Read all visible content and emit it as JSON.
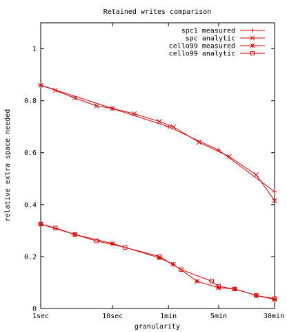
{
  "chart_data": {
    "type": "line",
    "title": "Retained writes comparison",
    "xlabel": "granularity",
    "ylabel": "relative extra space needed",
    "x_scale": "log",
    "x_unit": "seconds",
    "xlim": [
      1,
      1800
    ],
    "ylim": [
      0,
      1.1
    ],
    "x_ticks": [
      {
        "value": 1,
        "label": "1sec"
      },
      {
        "value": 10,
        "label": "10sec"
      },
      {
        "value": 60,
        "label": "1min"
      },
      {
        "value": 300,
        "label": "5min"
      },
      {
        "value": 1800,
        "label": "30min"
      }
    ],
    "y_ticks": [
      {
        "value": 0,
        "label": "0"
      },
      {
        "value": 0.2,
        "label": "0.2"
      },
      {
        "value": 0.4,
        "label": "0.4"
      },
      {
        "value": 0.6,
        "label": "0.6"
      },
      {
        "value": 0.8,
        "label": "0.8"
      },
      {
        "value": 1,
        "label": "1"
      }
    ],
    "grid": false,
    "legend_position": "top-right",
    "color": "#e00000",
    "series": [
      {
        "name": "spc1 measured",
        "marker": "plus",
        "x": [
          1,
          10,
          60,
          300,
          1800
        ],
        "y": [
          0.86,
          0.77,
          0.7,
          0.61,
          0.45
        ]
      },
      {
        "name": "spc analytic",
        "marker": "cross",
        "x": [
          1,
          1.6,
          3,
          6,
          10,
          20,
          45,
          70,
          160,
          420,
          1000,
          1800
        ],
        "y": [
          0.86,
          0.84,
          0.81,
          0.78,
          0.77,
          0.75,
          0.72,
          0.7,
          0.64,
          0.585,
          0.515,
          0.415
        ]
      },
      {
        "name": "cello99 measured",
        "marker": "star",
        "x": [
          1,
          3,
          10,
          45,
          70,
          150,
          300,
          500,
          1000,
          1800
        ],
        "y": [
          0.325,
          0.285,
          0.25,
          0.195,
          0.17,
          0.105,
          0.08,
          0.075,
          0.05,
          0.035
        ]
      },
      {
        "name": "cello99 analytic",
        "marker": "square",
        "x": [
          1,
          1.6,
          3,
          6,
          15,
          45,
          90,
          240,
          300,
          500,
          1000,
          1800
        ],
        "y": [
          0.325,
          0.31,
          0.285,
          0.26,
          0.235,
          0.2,
          0.15,
          0.105,
          0.085,
          0.075,
          0.05,
          0.038
        ]
      }
    ]
  }
}
